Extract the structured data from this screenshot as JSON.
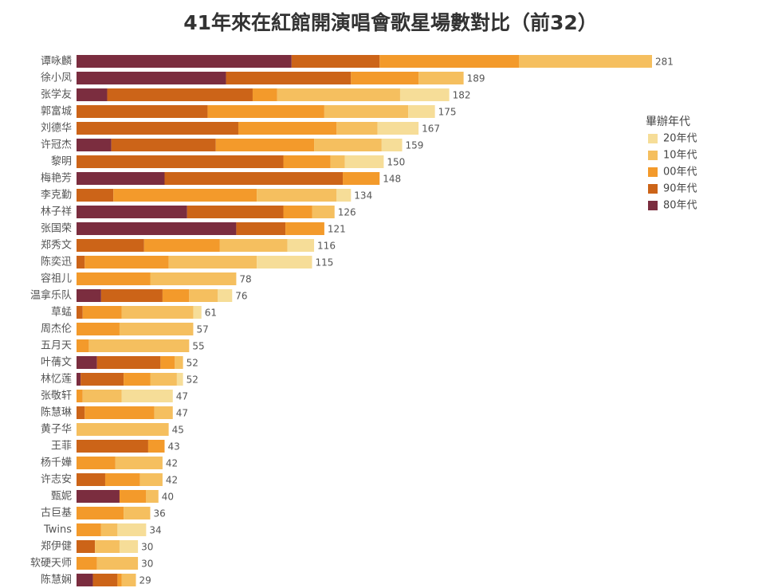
{
  "chart_data": {
    "type": "stacked-bar-horizontal",
    "title": "41年來在紅館開演唱會歌星場數對比（前32）",
    "legend_title": "畢辦年代",
    "legend_position": "right",
    "categories": [
      "谭咏麟",
      "徐小凤",
      "张学友",
      "郭富城",
      "刘德华",
      "许冠杰",
      "黎明",
      "梅艳芳",
      "李克勤",
      "林子祥",
      "张国荣",
      "郑秀文",
      "陈奕迅",
      "容祖儿",
      "温拿乐队",
      "草蜢",
      "周杰伦",
      "五月天",
      "叶蒨文",
      "林忆莲",
      "张敬轩",
      "陈慧琳",
      "黄子华",
      "王菲",
      "杨千嬅",
      "许志安",
      "甄妮",
      "古巨基",
      "Twins",
      "郑伊健",
      "软硬天师",
      "陈慧娴"
    ],
    "series": [
      {
        "name": "80年代",
        "color": "#7b2d3f",
        "values": [
          105,
          73,
          15,
          0,
          0,
          17,
          0,
          43,
          0,
          54,
          78,
          0,
          0,
          0,
          12,
          0,
          0,
          0,
          10,
          2,
          0,
          0,
          0,
          0,
          0,
          0,
          21,
          0,
          0,
          0,
          0,
          8
        ]
      },
      {
        "name": "90年代",
        "color": "#cc6418",
        "values": [
          43,
          61,
          71,
          64,
          79,
          51,
          101,
          87,
          18,
          47,
          24,
          33,
          4,
          0,
          30,
          3,
          0,
          0,
          31,
          21,
          0,
          4,
          0,
          35,
          0,
          14,
          0,
          0,
          0,
          9,
          0,
          12
        ]
      },
      {
        "name": "00年代",
        "color": "#f39a2b",
        "values": [
          68,
          33,
          12,
          57,
          48,
          48,
          23,
          18,
          70,
          14,
          19,
          37,
          41,
          36,
          13,
          19,
          21,
          6,
          7,
          13,
          3,
          34,
          0,
          8,
          19,
          17,
          13,
          23,
          12,
          0,
          10,
          2
        ]
      },
      {
        "name": "10年代",
        "color": "#f5bf5f",
        "values": [
          65,
          22,
          60,
          41,
          20,
          33,
          7,
          0,
          39,
          11,
          0,
          33,
          43,
          42,
          14,
          35,
          36,
          49,
          4,
          13,
          19,
          9,
          45,
          0,
          23,
          11,
          6,
          13,
          8,
          12,
          20,
          7
        ]
      },
      {
        "name": "20年代",
        "color": "#f6dd98",
        "values": [
          0,
          0,
          24,
          13,
          20,
          10,
          19,
          0,
          7,
          0,
          0,
          13,
          27,
          0,
          7,
          4,
          0,
          0,
          0,
          3,
          25,
          0,
          0,
          0,
          0,
          0,
          0,
          0,
          14,
          9,
          0,
          0
        ]
      }
    ],
    "totals": [
      281,
      189,
      182,
      175,
      167,
      159,
      150,
      148,
      134,
      126,
      121,
      116,
      115,
      78,
      76,
      61,
      57,
      55,
      52,
      52,
      47,
      47,
      45,
      43,
      42,
      42,
      40,
      36,
      34,
      30,
      30,
      29
    ]
  }
}
